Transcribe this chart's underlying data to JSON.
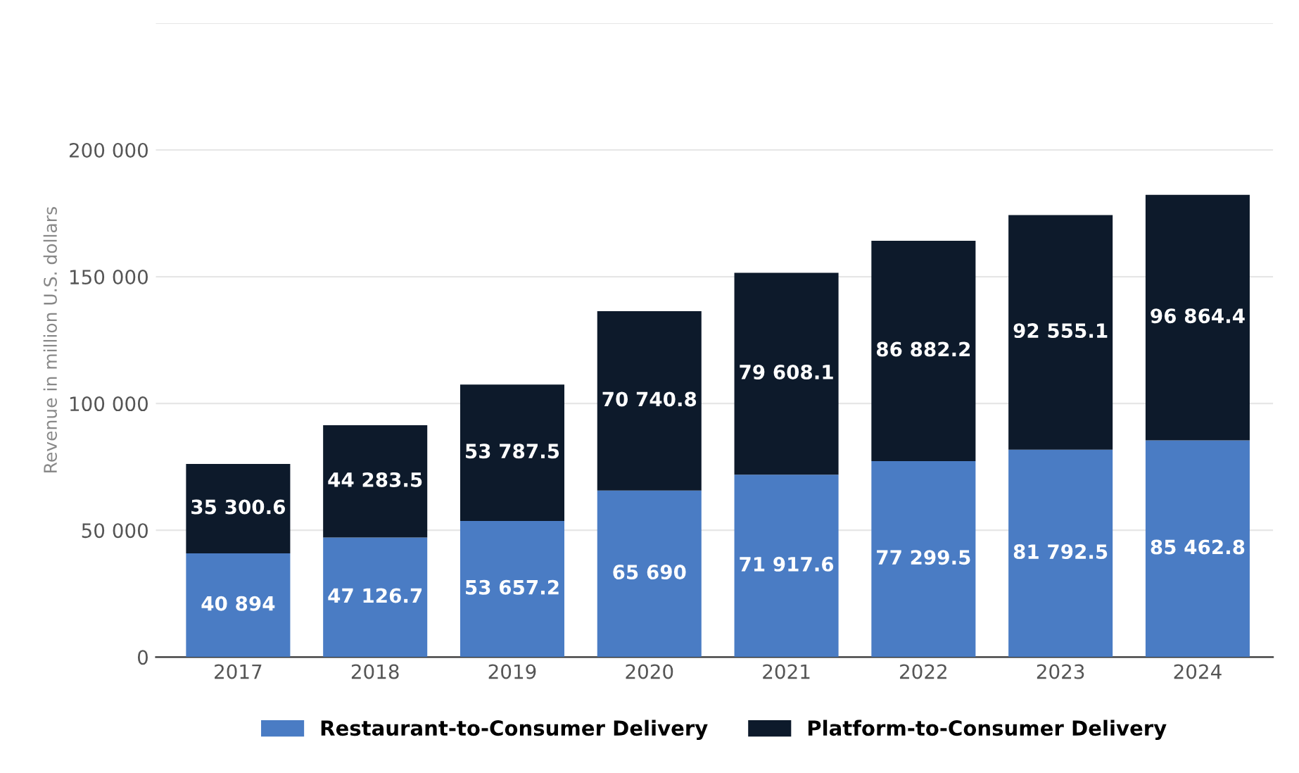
{
  "chart_data": {
    "type": "bar",
    "stacked": true,
    "ylabel": "Revenue in million U.S. dollars",
    "categories": [
      "2017",
      "2018",
      "2019",
      "2020",
      "2021",
      "2022",
      "2023",
      "2024"
    ],
    "series": [
      {
        "name": "Restaurant-to-Consumer Delivery",
        "color": "#4a7cc4",
        "values": [
          40894,
          47126.7,
          53657.2,
          65690,
          71917.6,
          77299.5,
          81792.5,
          85462.8
        ],
        "value_labels": [
          "40 894",
          "47 126.7",
          "53 657.2",
          "65 690",
          "71 917.6",
          "77 299.5",
          "81 792.5",
          "85 462.8"
        ]
      },
      {
        "name": "Platform-to-Consumer Delivery",
        "color": "#0d1a2b",
        "values": [
          35300.6,
          44283.5,
          53787.5,
          70740.8,
          79608.1,
          86882.2,
          92555.1,
          96864.4
        ],
        "value_labels": [
          "35 300.6",
          "44 283.5",
          "53 787.5",
          "70 740.8",
          "79 608.1",
          "86 882.2",
          "92 555.1",
          "96 864.4"
        ]
      }
    ],
    "ylim": [
      0,
      250000
    ],
    "yticks": [
      0,
      {
        "value": 50000,
        "label": "50 000"
      },
      {
        "value": 100000,
        "label": "100 000"
      },
      {
        "value": 150000,
        "label": "150 000"
      },
      {
        "value": 200000,
        "label": "200 000"
      },
      {
        "value": 250000,
        "label": null
      }
    ],
    "grid": "y",
    "legend": "bottom"
  }
}
